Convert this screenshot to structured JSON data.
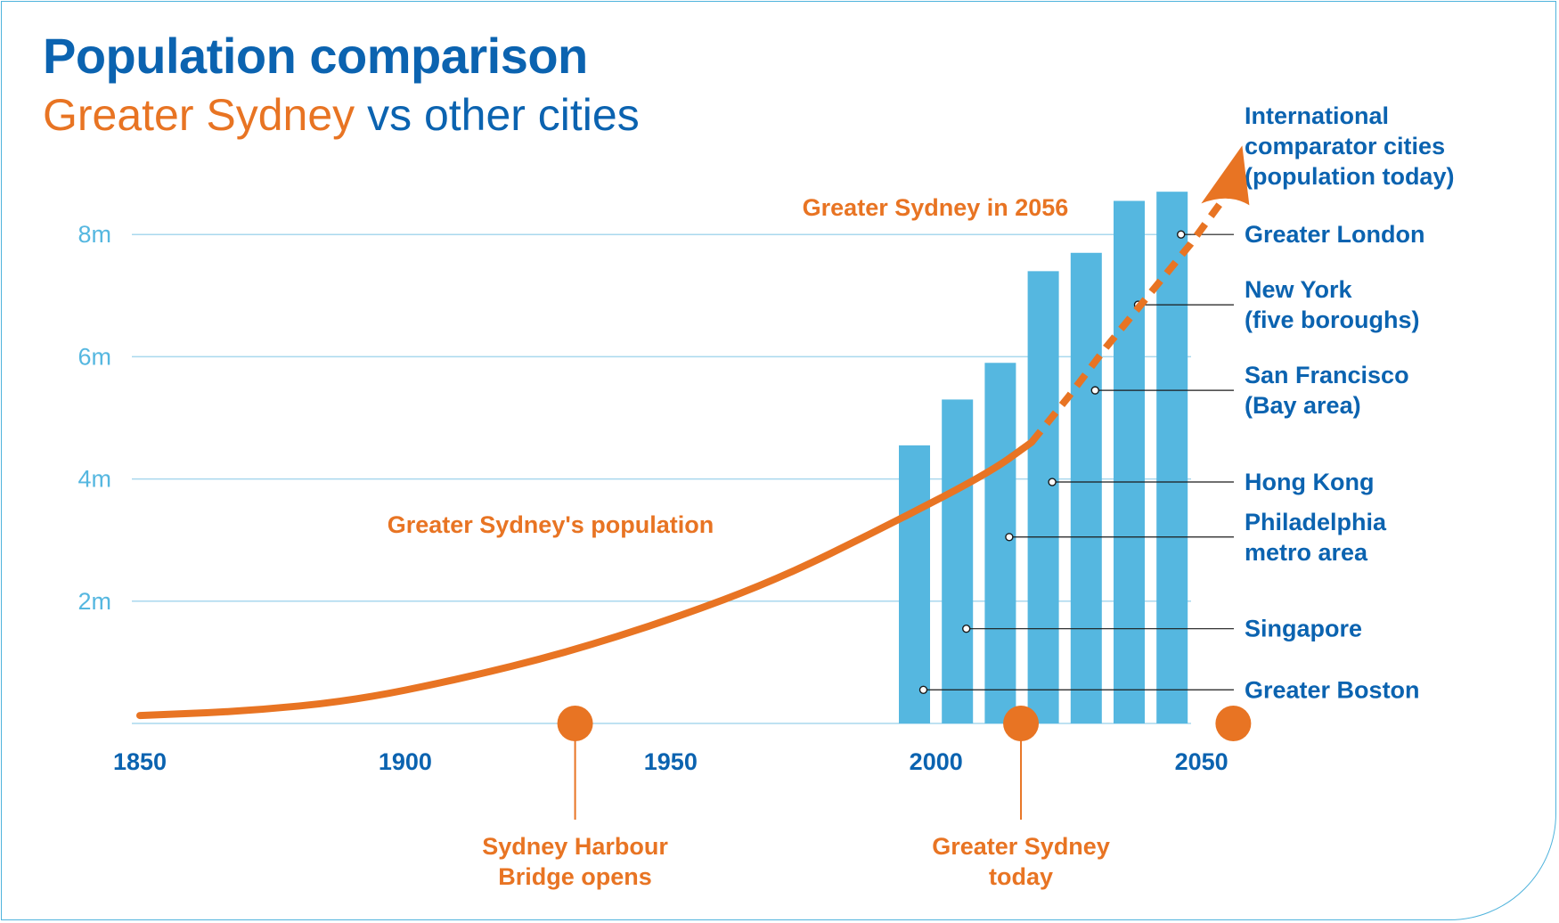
{
  "title": "Population comparison",
  "subtitle": {
    "highlight": "Greater Sydney",
    "rest": " vs other cities"
  },
  "colors": {
    "sydney": "#e87423",
    "cities": "#55b7e0",
    "text": "#0b63b0",
    "grid": "#a9d8ee"
  },
  "chart_data": {
    "type": "line",
    "title": "Population comparison",
    "subtitle": "Greater Sydney vs other cities",
    "xlim": [
      1850,
      2065
    ],
    "ylim": [
      0,
      8.7
    ],
    "x_ticks": [
      1850,
      1900,
      1950,
      2000,
      2050
    ],
    "y_ticks": [
      {
        "value": 2,
        "label": "2m"
      },
      {
        "value": 4,
        "label": "4m"
      },
      {
        "value": 6,
        "label": "6m"
      },
      {
        "value": 8,
        "label": "8m"
      }
    ],
    "grid": true,
    "sydney_series": {
      "label": "Greater Sydney's population",
      "x": [
        1850,
        1870,
        1890,
        1910,
        1930,
        1950,
        1970,
        1990,
        2010,
        2018
      ],
      "y": [
        0.13,
        0.2,
        0.37,
        0.72,
        1.15,
        1.7,
        2.35,
        3.2,
        4.1,
        4.6
      ]
    },
    "projection": {
      "label": "Greater Sydney in 2056",
      "x": [
        2018,
        2025,
        2032,
        2040,
        2048,
        2056
      ],
      "y": [
        4.6,
        5.35,
        6.15,
        7.0,
        7.85,
        8.8
      ]
    },
    "cities_series": {
      "legend_title": "International comparator cities (population today)",
      "bars": [
        {
          "name": "Greater Boston",
          "lines": [
            "Greater Boston"
          ],
          "value": 4.55
        },
        {
          "name": "Singapore",
          "lines": [
            "Singapore"
          ],
          "value": 5.3
        },
        {
          "name": "Philadelphia metro area",
          "lines": [
            "Philadelphia",
            "metro area"
          ],
          "value": 5.9
        },
        {
          "name": "Hong Kong",
          "lines": [
            "Hong Kong"
          ],
          "value": 7.4
        },
        {
          "name": "San Francisco (Bay area)",
          "lines": [
            "San Francisco",
            "(Bay area)"
          ],
          "value": 7.7
        },
        {
          "name": "New York (five boroughs)",
          "lines": [
            "New York",
            "(five boroughs)"
          ],
          "value": 8.55
        },
        {
          "name": "Greater London",
          "lines": [
            "Greater London"
          ],
          "value": 8.7
        }
      ]
    },
    "legend_title_lines": [
      "International",
      "comparator cities",
      "(population today)"
    ],
    "annotations": [
      {
        "x": 1932,
        "lines": [
          "Sydney Harbour",
          "Bridge opens"
        ]
      },
      {
        "x": 2016,
        "lines": [
          "Greater Sydney",
          "today"
        ]
      },
      {
        "x": 2056,
        "lines": []
      }
    ]
  }
}
